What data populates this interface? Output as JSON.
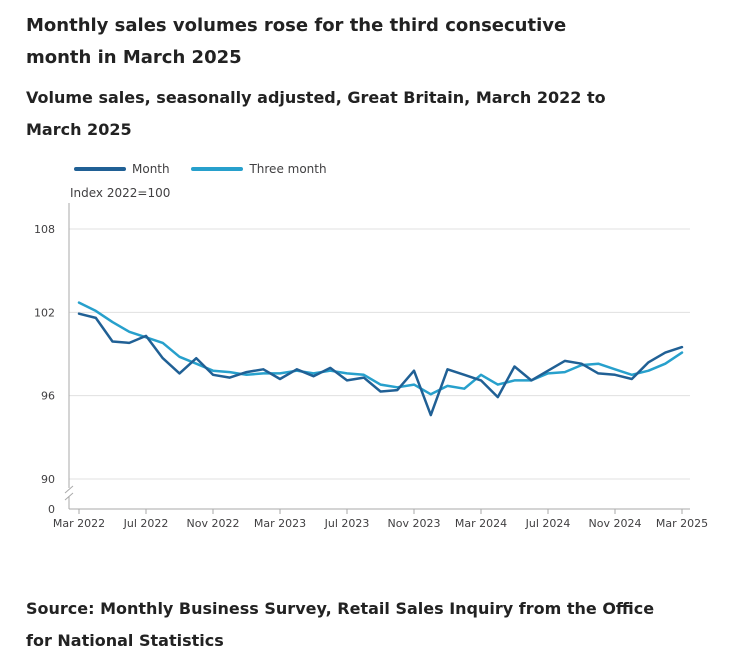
{
  "title": "Monthly sales volumes rose for the third consecutive month in March 2025",
  "subtitle": "Volume sales, seasonally adjusted, Great Britain, March 2022 to March 2025",
  "source": "Source: Monthly Business Survey, Retail Sales Inquiry from the Office for National Statistics",
  "colors": {
    "month": "#206095",
    "three_month": "#27a0cc",
    "grid": "#e0e0e0",
    "axis": "#aaaaaa",
    "text": "#414042"
  },
  "chart_data": {
    "type": "line",
    "title": "Volume sales, seasonally adjusted, Great Britain, March 2022 to March 2025",
    "ylabel": "Index 2022=100",
    "xlabel": "",
    "ylim": [
      90,
      110
    ],
    "yticks": [
      90,
      96,
      102,
      108
    ],
    "y_zero_label": "0",
    "axis_break": true,
    "x_tick_labels": [
      {
        "label": "Mar 2022",
        "index": 0
      },
      {
        "label": "Jul 2022",
        "index": 4
      },
      {
        "label": "Nov 2022",
        "index": 8
      },
      {
        "label": "Mar 2023",
        "index": 12
      },
      {
        "label": "Jul 2023",
        "index": 16
      },
      {
        "label": "Nov 2023",
        "index": 20
      },
      {
        "label": "Mar 2024",
        "index": 24
      },
      {
        "label": "Jul 2024",
        "index": 28
      },
      {
        "label": "Nov 2024",
        "index": 32
      },
      {
        "label": "Mar 2025",
        "index": 36
      }
    ],
    "x": [
      "Mar 2022",
      "Apr 2022",
      "May 2022",
      "Jun 2022",
      "Jul 2022",
      "Aug 2022",
      "Sep 2022",
      "Oct 2022",
      "Nov 2022",
      "Dec 2022",
      "Jan 2023",
      "Feb 2023",
      "Mar 2023",
      "Apr 2023",
      "May 2023",
      "Jun 2023",
      "Jul 2023",
      "Aug 2023",
      "Sep 2023",
      "Oct 2023",
      "Nov 2023",
      "Dec 2023",
      "Jan 2024",
      "Feb 2024",
      "Mar 2024",
      "Apr 2024",
      "May 2024",
      "Jun 2024",
      "Jul 2024",
      "Aug 2024",
      "Sep 2024",
      "Oct 2024",
      "Nov 2024",
      "Dec 2024",
      "Jan 2025",
      "Feb 2025",
      "Mar 2025"
    ],
    "series": [
      {
        "name": "Month",
        "values": [
          101.9,
          101.6,
          99.9,
          99.8,
          100.3,
          98.7,
          97.6,
          98.7,
          97.5,
          97.3,
          97.7,
          97.9,
          97.2,
          97.9,
          97.4,
          98.0,
          97.1,
          97.3,
          96.3,
          96.4,
          97.8,
          94.6,
          97.9,
          97.5,
          97.1,
          95.9,
          98.1,
          97.1,
          97.8,
          98.5,
          98.3,
          97.6,
          97.5,
          97.2,
          98.4,
          99.1,
          99.5
        ]
      },
      {
        "name": "Three month",
        "values": [
          102.7,
          102.1,
          101.3,
          100.6,
          100.2,
          99.8,
          98.8,
          98.3,
          97.8,
          97.7,
          97.5,
          97.6,
          97.6,
          97.8,
          97.6,
          97.8,
          97.6,
          97.5,
          96.8,
          96.6,
          96.8,
          96.1,
          96.7,
          96.5,
          97.5,
          96.8,
          97.1,
          97.1,
          97.6,
          97.7,
          98.2,
          98.3,
          97.9,
          97.5,
          97.8,
          98.3,
          99.1
        ]
      }
    ]
  }
}
